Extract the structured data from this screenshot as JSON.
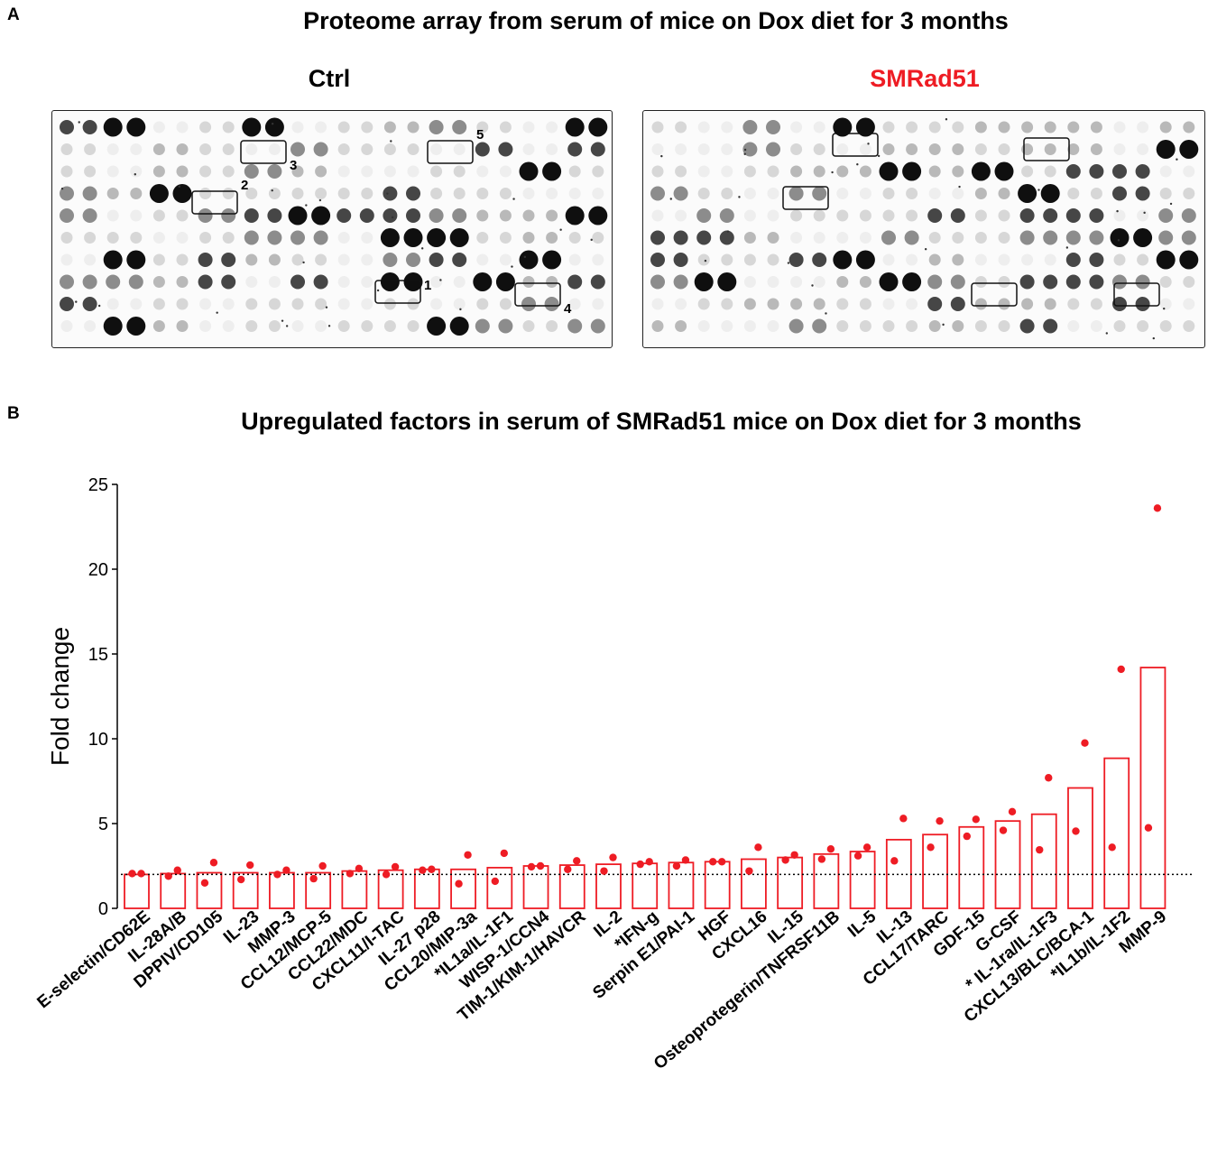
{
  "panel_a": {
    "letter": "A",
    "title": "Proteome array from serum of mice on Dox diet for 3 months",
    "ctrl_label": "Ctrl",
    "smrad_label": "SMRad51",
    "smrad_color": "#ee1c24",
    "ctrl_box_labels": [
      "1",
      "2",
      "3",
      "4",
      "5"
    ]
  },
  "panel_b": {
    "letter": "B",
    "title": "Upregulated factors in serum of SMRad51 mice on Dox diet for 3 months"
  },
  "chart_data": {
    "type": "bar",
    "title": "Upregulated factors in serum of SMRad51 mice on Dox diet for 3 months",
    "xlabel": "",
    "ylabel": "Fold change",
    "ylim": [
      0,
      25
    ],
    "yticks": [
      0,
      5,
      10,
      15,
      20,
      25
    ],
    "reference_line": 2,
    "bar_style": "open",
    "color": "#ee1c24",
    "categories": [
      "E-selectin/CD62E",
      "IL-28A/B",
      "DPPIV/CD105",
      "IL-23",
      "MMP-3",
      "CCL12/MCP-5",
      "CCL22/MDC",
      "CXCL11/I-TAC",
      "IL-27 p28",
      "CCL20/MIP-3a",
      "*IL1a/IL-1F1",
      "WISP-1/CCN4",
      "TIM-1/KIM-1/HAVCR",
      "IL-2",
      "*IFN-g",
      "Serpin E1/PAI-1",
      "HGF",
      "CXCL16",
      "IL-15",
      "Osteoprotegerin/TNFRSF11B",
      "IL-5",
      "IL-13",
      "CCL17/TARC",
      "GDF-15",
      "G-CSF",
      "* IL-1ra/IL-1F3",
      "CXCL13/BLC/BCA-1",
      "*IL1b/IL-1F2",
      "MMP-9"
    ],
    "values": [
      2.0,
      2.05,
      2.1,
      2.1,
      2.1,
      2.1,
      2.2,
      2.25,
      2.3,
      2.3,
      2.4,
      2.5,
      2.55,
      2.6,
      2.65,
      2.7,
      2.75,
      2.9,
      3.0,
      3.2,
      3.35,
      4.05,
      4.35,
      4.8,
      5.15,
      5.55,
      7.1,
      8.85,
      14.2
    ],
    "points": [
      [
        2.05,
        2.05
      ],
      [
        1.9,
        2.25
      ],
      [
        1.5,
        2.7
      ],
      [
        1.7,
        2.55
      ],
      [
        2.0,
        2.25
      ],
      [
        1.75,
        2.5
      ],
      [
        2.05,
        2.35
      ],
      [
        2.0,
        2.45
      ],
      [
        2.25,
        2.3
      ],
      [
        1.45,
        3.15
      ],
      [
        1.6,
        3.25
      ],
      [
        2.45,
        2.5
      ],
      [
        2.3,
        2.8
      ],
      [
        2.2,
        3.0
      ],
      [
        2.6,
        2.75
      ],
      [
        2.5,
        2.85
      ],
      [
        2.75,
        2.75
      ],
      [
        2.2,
        3.6
      ],
      [
        2.85,
        3.15
      ],
      [
        2.9,
        3.5
      ],
      [
        3.1,
        3.6
      ],
      [
        2.8,
        5.3
      ],
      [
        3.6,
        5.15
      ],
      [
        4.25,
        5.25
      ],
      [
        4.6,
        5.7
      ],
      [
        3.45,
        7.7
      ],
      [
        4.55,
        9.75
      ],
      [
        3.6,
        14.1
      ],
      [
        4.75,
        23.6
      ]
    ]
  }
}
